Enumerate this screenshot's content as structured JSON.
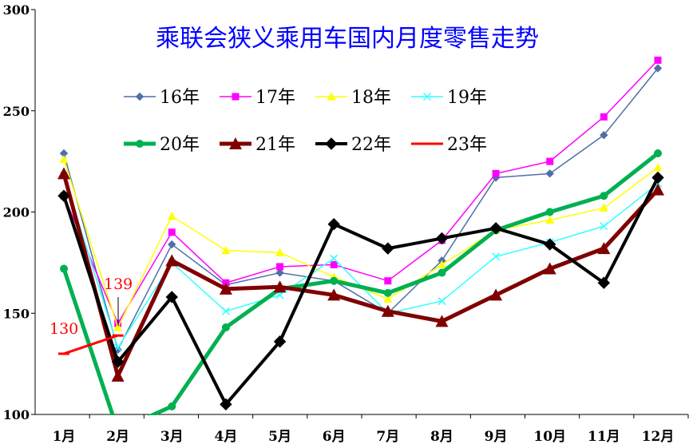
{
  "chart_data": {
    "type": "line",
    "title": "乘联会狭义乘用车国内月度零售走势",
    "categories": [
      "1月",
      "2月",
      "3月",
      "4月",
      "5月",
      "6月",
      "7月",
      "8月",
      "9月",
      "10月",
      "11月",
      "12月"
    ],
    "y_ticks": [
      "100",
      "150",
      "200",
      "250",
      "300"
    ],
    "ylim": [
      100,
      300
    ],
    "grid": false,
    "legend_position": "top-left, inside plot",
    "series": [
      {
        "name": "16年",
        "color": "#4f6fa8",
        "marker": "diamond",
        "width": 1.5,
        "values": [
          229,
          132,
          184,
          164,
          170,
          166,
          150,
          176,
          217,
          219,
          238,
          271
        ]
      },
      {
        "name": "17年",
        "color": "#ff00ff",
        "marker": "square",
        "width": 1.5,
        "values": [
          208,
          145,
          190,
          165,
          173,
          174,
          166,
          186,
          219,
          225,
          247,
          275
        ]
      },
      {
        "name": "18年",
        "color": "#ffff00",
        "marker": "triangle",
        "width": 1.5,
        "values": [
          226,
          143,
          198,
          181,
          180,
          168,
          157,
          174,
          191,
          196,
          202,
          222
        ]
      },
      {
        "name": "19年",
        "color": "#33ffff",
        "marker": "x",
        "width": 1.5,
        "values": [
          218,
          133,
          175,
          151,
          159,
          177,
          150,
          156,
          178,
          185,
          193,
          214
        ]
      },
      {
        "name": "20年",
        "color": "#00b050",
        "marker": "circle",
        "width": 5,
        "values": [
          172,
          92,
          104,
          143,
          162,
          166,
          160,
          170,
          191,
          200,
          208,
          229
        ]
      },
      {
        "name": "21年",
        "color": "#800000",
        "marker": "triangle",
        "width": 5,
        "values": [
          219,
          119,
          176,
          162,
          163,
          159,
          151,
          146,
          159,
          172,
          182,
          211
        ]
      },
      {
        "name": "22年",
        "color": "#000000",
        "marker": "diamond",
        "width": 4,
        "values": [
          208,
          126,
          158,
          105,
          136,
          194,
          182,
          187,
          192,
          184,
          165,
          217
        ]
      },
      {
        "name": "23年",
        "color": "#ff0000",
        "marker": "dash",
        "width": 3,
        "values": [
          130,
          139,
          null,
          null,
          null,
          null,
          null,
          null,
          null,
          null,
          null,
          null
        ]
      }
    ],
    "annotations": [
      "130",
      "139"
    ]
  }
}
